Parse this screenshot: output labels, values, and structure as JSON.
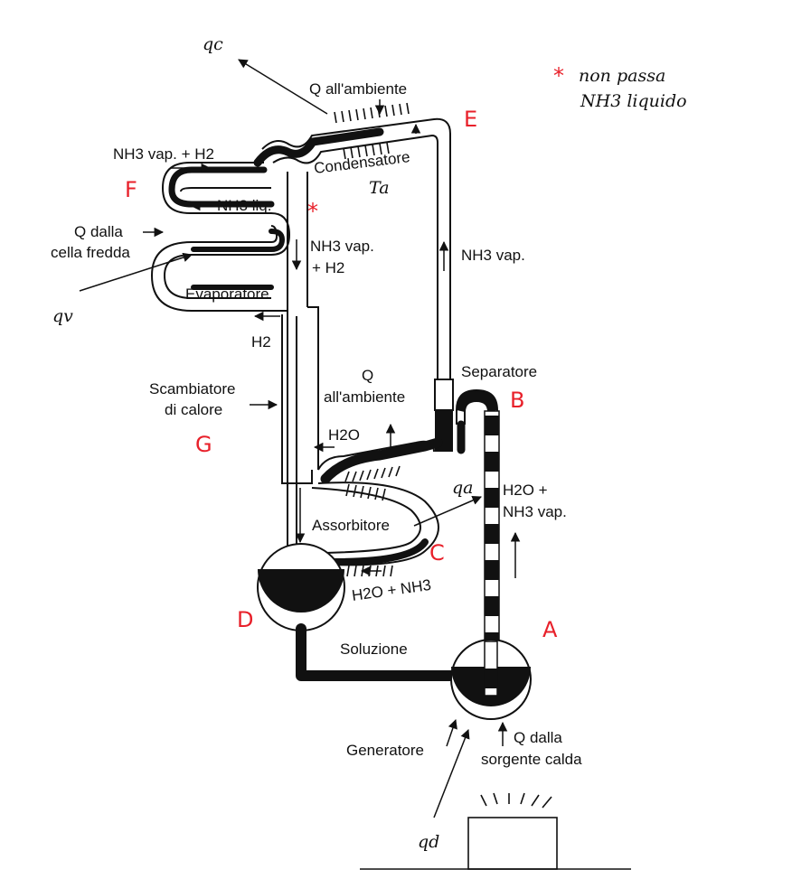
{
  "labels": {
    "q_ambient_top": "Q all'ambiente",
    "condenser": "Condensatore",
    "nh3_vap_h2_top": "NH3 vap. + H2",
    "nh3_liq": "NH3 liq.",
    "q_cold_1": "Q dalla",
    "q_cold_2": "cella fredda",
    "nh3_vap_h2_mid_1": "NH3 vap.",
    "nh3_vap_h2_mid_2": "+ H2",
    "nh3_vap_right": "NH3 vap.",
    "evaporator": "Evaporatore",
    "h2": "H2",
    "separator": "Separatore",
    "heat_exchanger_1": "Scambiatore",
    "heat_exchanger_2": "di calore",
    "q_ambient_mid_1": "Q",
    "q_ambient_mid_2": "all'ambiente",
    "h2o": "H2O",
    "h2o_nh3_vap_1": "H2O +",
    "h2o_nh3_vap_2": "NH3 vap.",
    "absorber": "Assorbitore",
    "h2o_nh3": "H2O + NH3",
    "solution": "Soluzione",
    "generator": "Generatore",
    "q_hot_1": "Q dalla",
    "q_hot_2": "sorgente calda"
  },
  "handwritten": {
    "qc": "qc",
    "ta": "Ta",
    "qv": "qv",
    "qa": "qa",
    "qd": "qd",
    "note_star": "*",
    "note_1": "non passa",
    "note_2": "NH3 liquido",
    "star_mark": "*"
  },
  "points": {
    "A": "A",
    "B": "B",
    "C": "C",
    "D": "D",
    "E": "E",
    "F": "F",
    "G": "G"
  }
}
